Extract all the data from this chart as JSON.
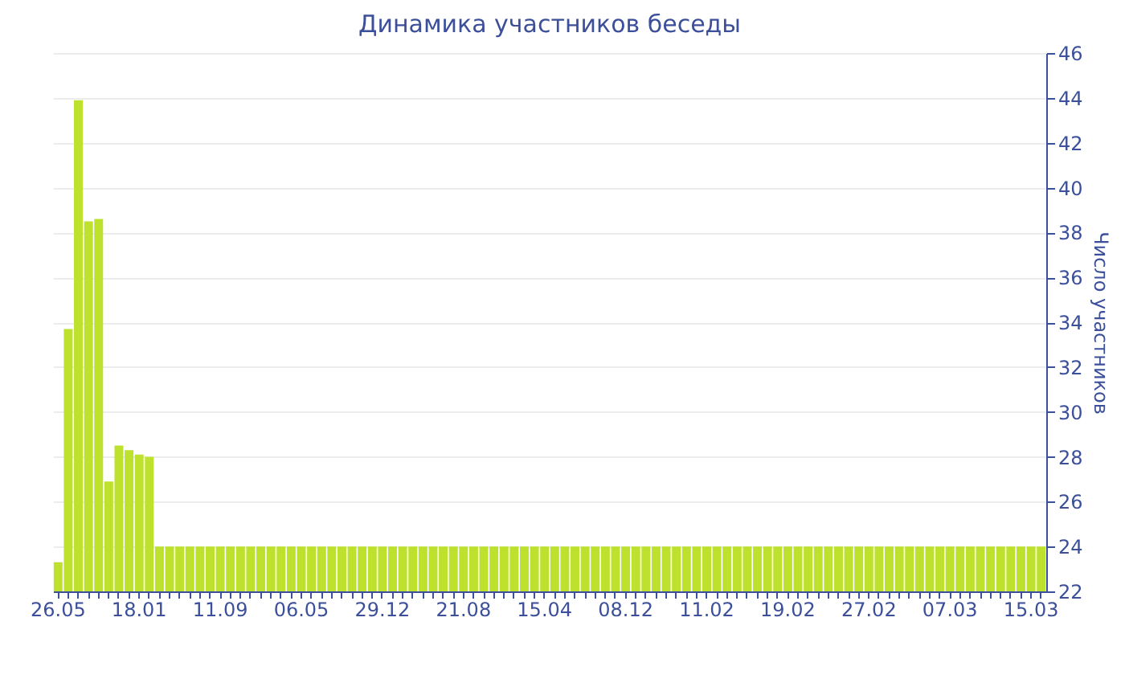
{
  "chart_data": {
    "type": "bar",
    "title": "Динамика участников беседы",
    "ylabel": "Число участников",
    "categories": [
      "26.05",
      null,
      null,
      null,
      null,
      null,
      null,
      null,
      "18.01",
      null,
      null,
      null,
      null,
      null,
      null,
      null,
      "11.09",
      null,
      null,
      null,
      null,
      null,
      null,
      null,
      "06.05",
      null,
      null,
      null,
      null,
      null,
      null,
      null,
      "29.12",
      null,
      null,
      null,
      null,
      null,
      null,
      null,
      "21.08",
      null,
      null,
      null,
      null,
      null,
      null,
      null,
      "15.04",
      null,
      null,
      null,
      null,
      null,
      null,
      null,
      "08.12",
      null,
      null,
      null,
      null,
      null,
      null,
      null,
      "11.02",
      null,
      null,
      null,
      null,
      null,
      null,
      null,
      "19.02",
      null,
      null,
      null,
      null,
      null,
      null,
      null,
      "27.02",
      null,
      null,
      null,
      null,
      null,
      null,
      null,
      "07.03",
      null,
      null,
      null,
      null,
      null,
      null,
      null,
      "15.03",
      null
    ],
    "series": [
      {
        "color": "#bde12d",
        "axis": "y2",
        "values": [
          23.3,
          33.7,
          43.9,
          38.5,
          38.6,
          26.9,
          28.5,
          28.3,
          28.1,
          28.0,
          24,
          24,
          24,
          24,
          24,
          24,
          24,
          24,
          24,
          24,
          24,
          24,
          24,
          24,
          24,
          24,
          24,
          24,
          24,
          24,
          24,
          24,
          24,
          24,
          24,
          24,
          24,
          24,
          24,
          24,
          24,
          24,
          24,
          24,
          24,
          24,
          24,
          24,
          24,
          24,
          24,
          24,
          24,
          24,
          24,
          24,
          24,
          24,
          24,
          24,
          24,
          24,
          24,
          24,
          24,
          24,
          24,
          24,
          24,
          24,
          24,
          24,
          24,
          24,
          24,
          24,
          24,
          24,
          24,
          24,
          24,
          24,
          24,
          24,
          24,
          24,
          24,
          24,
          24,
          24,
          24,
          24,
          24,
          24,
          24,
          24,
          24,
          24
        ]
      }
    ],
    "y2lim": [
      22,
      46
    ],
    "y2ticks": [
      22,
      24,
      26,
      28,
      30,
      32,
      34,
      36,
      38,
      40,
      42,
      44,
      46
    ],
    "grid": "y"
  }
}
